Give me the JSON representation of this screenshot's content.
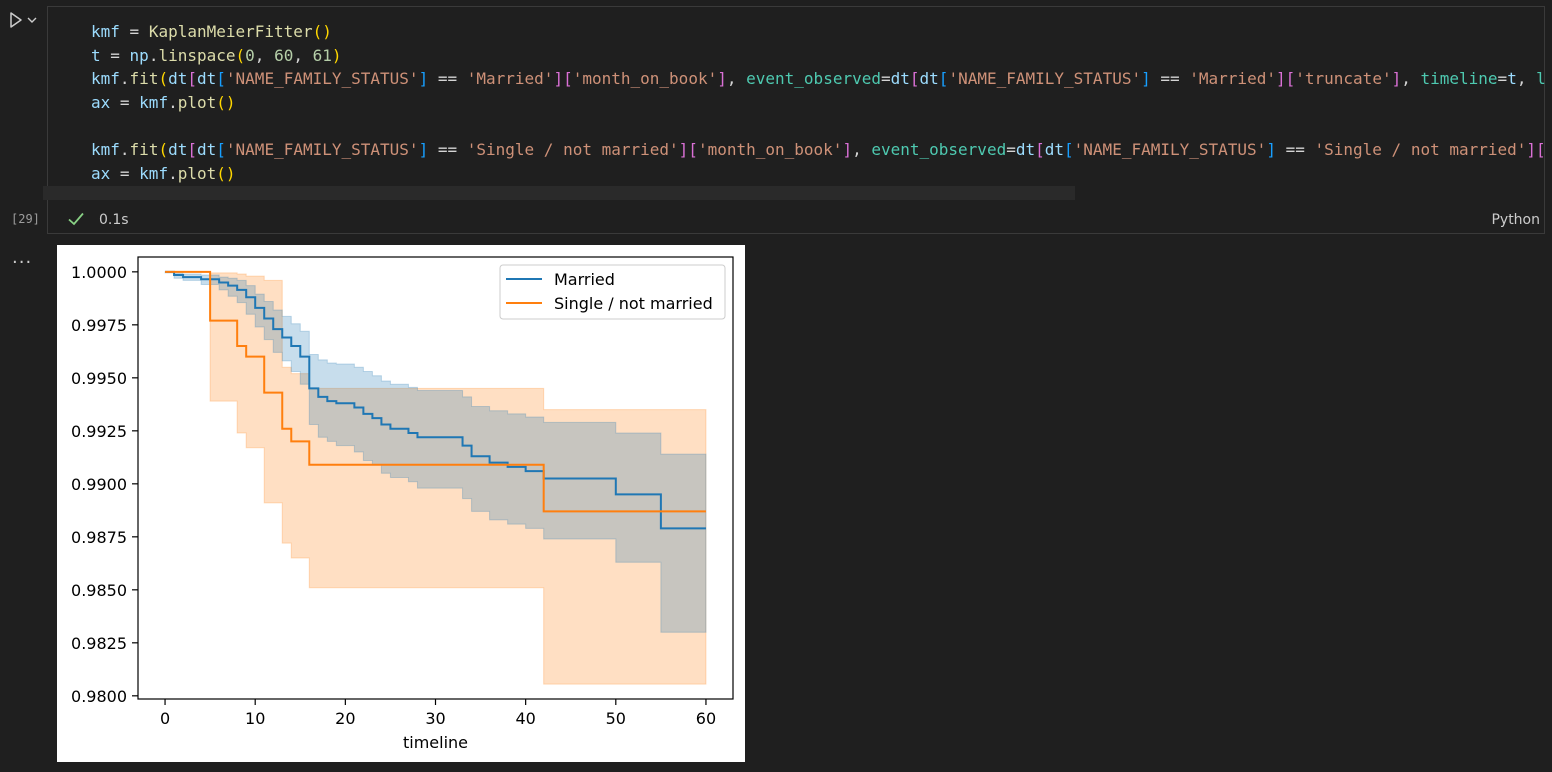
{
  "cell": {
    "code_lines": [
      [
        [
          "tk-var",
          "kmf"
        ],
        [
          "tk-op",
          " = "
        ],
        [
          "tk-kw",
          "KaplanMeierFitter"
        ],
        [
          "tk-br1",
          "()"
        ]
      ],
      [
        [
          "tk-var",
          "t"
        ],
        [
          "tk-op",
          " = "
        ],
        [
          "tk-var",
          "np"
        ],
        [
          "tk-op",
          "."
        ],
        [
          "tk-kw",
          "linspace"
        ],
        [
          "tk-br1",
          "("
        ],
        [
          "tk-num",
          "0"
        ],
        [
          "tk-op",
          ", "
        ],
        [
          "tk-num",
          "60"
        ],
        [
          "tk-op",
          ", "
        ],
        [
          "tk-num",
          "61"
        ],
        [
          "tk-br1",
          ")"
        ]
      ],
      [
        [
          "tk-var",
          "kmf"
        ],
        [
          "tk-op",
          "."
        ],
        [
          "tk-kw",
          "fit"
        ],
        [
          "tk-br1",
          "("
        ],
        [
          "tk-var",
          "dt"
        ],
        [
          "tk-br2",
          "["
        ],
        [
          "tk-var",
          "dt"
        ],
        [
          "tk-br3",
          "["
        ],
        [
          "tk-str",
          "'NAME_FAMILY_STATUS'"
        ],
        [
          "tk-br3",
          "]"
        ],
        [
          "tk-op",
          " == "
        ],
        [
          "tk-str",
          "'Married'"
        ],
        [
          "tk-br2",
          "]"
        ],
        [
          "tk-br2",
          "["
        ],
        [
          "tk-str",
          "'month_on_book'"
        ],
        [
          "tk-br2",
          "]"
        ],
        [
          "tk-op",
          ", "
        ],
        [
          "tk-kwarg",
          "event_observed"
        ],
        [
          "tk-op",
          "="
        ],
        [
          "tk-var",
          "dt"
        ],
        [
          "tk-br2",
          "["
        ],
        [
          "tk-var",
          "dt"
        ],
        [
          "tk-br3",
          "["
        ],
        [
          "tk-str",
          "'NAME_FAMILY_STATUS'"
        ],
        [
          "tk-br3",
          "]"
        ],
        [
          "tk-op",
          " == "
        ],
        [
          "tk-str",
          "'Married'"
        ],
        [
          "tk-br2",
          "]"
        ],
        [
          "tk-br2",
          "["
        ],
        [
          "tk-str",
          "'truncate'"
        ],
        [
          "tk-br2",
          "]"
        ],
        [
          "tk-op",
          ", "
        ],
        [
          "tk-kwarg",
          "timeline"
        ],
        [
          "tk-op",
          "="
        ],
        [
          "tk-var",
          "t"
        ],
        [
          "tk-op",
          ", "
        ],
        [
          "tk-kwarg",
          "l"
        ]
      ],
      [
        [
          "tk-var",
          "ax"
        ],
        [
          "tk-op",
          " = "
        ],
        [
          "tk-var",
          "kmf"
        ],
        [
          "tk-op",
          "."
        ],
        [
          "tk-kw",
          "plot"
        ],
        [
          "tk-br1",
          "()"
        ]
      ],
      [],
      [
        [
          "tk-var",
          "kmf"
        ],
        [
          "tk-op",
          "."
        ],
        [
          "tk-kw",
          "fit"
        ],
        [
          "tk-br1",
          "("
        ],
        [
          "tk-var",
          "dt"
        ],
        [
          "tk-br2",
          "["
        ],
        [
          "tk-var",
          "dt"
        ],
        [
          "tk-br3",
          "["
        ],
        [
          "tk-str",
          "'NAME_FAMILY_STATUS'"
        ],
        [
          "tk-br3",
          "]"
        ],
        [
          "tk-op",
          " == "
        ],
        [
          "tk-str",
          "'Single / not married'"
        ],
        [
          "tk-br2",
          "]"
        ],
        [
          "tk-br2",
          "["
        ],
        [
          "tk-str",
          "'month_on_book'"
        ],
        [
          "tk-br2",
          "]"
        ],
        [
          "tk-op",
          ", "
        ],
        [
          "tk-kwarg",
          "event_observed"
        ],
        [
          "tk-op",
          "="
        ],
        [
          "tk-var",
          "dt"
        ],
        [
          "tk-br2",
          "["
        ],
        [
          "tk-var",
          "dt"
        ],
        [
          "tk-br3",
          "["
        ],
        [
          "tk-str",
          "'NAME_FAMILY_STATUS'"
        ],
        [
          "tk-br3",
          "]"
        ],
        [
          "tk-op",
          " == "
        ],
        [
          "tk-str",
          "'Single / not married'"
        ],
        [
          "tk-br2",
          "]"
        ],
        [
          "tk-br2",
          "["
        ]
      ],
      [
        [
          "tk-var",
          "ax"
        ],
        [
          "tk-op",
          " = "
        ],
        [
          "tk-var",
          "kmf"
        ],
        [
          "tk-op",
          "."
        ],
        [
          "tk-kw",
          "plot"
        ],
        [
          "tk-br1",
          "()"
        ]
      ]
    ],
    "execution_count": "[29]",
    "execution_time": "0.1s",
    "language": "Python",
    "output_more": "..."
  },
  "chart_data": {
    "type": "line",
    "xlabel": "timeline",
    "ylabel": "",
    "xlim": [
      -3,
      63
    ],
    "ylim": [
      0.97985,
      1.0007
    ],
    "xticks": [
      0,
      10,
      20,
      30,
      40,
      50,
      60
    ],
    "yticks": [
      0.98,
      0.9825,
      0.985,
      0.9875,
      0.99,
      0.9925,
      0.995,
      0.9975,
      1.0
    ],
    "ytick_labels": [
      "0.9800",
      "0.9825",
      "0.9850",
      "0.9875",
      "0.9900",
      "0.9925",
      "0.9950",
      "0.9975",
      "1.0000"
    ],
    "legend_position": "upper right",
    "series": [
      {
        "name": "Married",
        "color": "#1f77b4",
        "band_color": "#1f77b4",
        "steps": [
          [
            0,
            1.0
          ],
          [
            1,
            0.99985
          ],
          [
            2,
            0.99975
          ],
          [
            4,
            0.99965
          ],
          [
            6,
            0.9995
          ],
          [
            7,
            0.99935
          ],
          [
            8,
            0.99915
          ],
          [
            9,
            0.9988
          ],
          [
            10,
            0.9983
          ],
          [
            11,
            0.9978
          ],
          [
            12,
            0.9973
          ],
          [
            13,
            0.9969
          ],
          [
            14,
            0.9965
          ],
          [
            15,
            0.996
          ],
          [
            16,
            0.9945
          ],
          [
            17,
            0.9941
          ],
          [
            18,
            0.9939
          ],
          [
            19,
            0.9938
          ],
          [
            21,
            0.9936
          ],
          [
            22,
            0.9933
          ],
          [
            23,
            0.9931
          ],
          [
            24,
            0.9928
          ],
          [
            25,
            0.9926
          ],
          [
            27,
            0.9924
          ],
          [
            28,
            0.9922
          ],
          [
            33,
            0.9918
          ],
          [
            34,
            0.9913
          ],
          [
            36,
            0.991
          ],
          [
            38,
            0.9908
          ],
          [
            40,
            0.9906
          ],
          [
            42,
            0.99025
          ],
          [
            50,
            0.9895
          ],
          [
            55,
            0.9879
          ],
          [
            60,
            0.9879
          ]
        ],
        "lower": [
          [
            0,
            0.99995
          ],
          [
            1,
            0.9997
          ],
          [
            2,
            0.9996
          ],
          [
            4,
            0.9994
          ],
          [
            6,
            0.99915
          ],
          [
            7,
            0.99885
          ],
          [
            8,
            0.99855
          ],
          [
            9,
            0.998
          ],
          [
            10,
            0.9974
          ],
          [
            11,
            0.9968
          ],
          [
            12,
            0.9962
          ],
          [
            13,
            0.9958
          ],
          [
            14,
            0.9953
          ],
          [
            15,
            0.9947
          ],
          [
            16,
            0.9928
          ],
          [
            17,
            0.9922
          ],
          [
            18,
            0.992
          ],
          [
            19,
            0.9918
          ],
          [
            21,
            0.9915
          ],
          [
            22,
            0.9911
          ],
          [
            23,
            0.9909
          ],
          [
            24,
            0.9905
          ],
          [
            25,
            0.9903
          ],
          [
            27,
            0.9901
          ],
          [
            28,
            0.9898
          ],
          [
            33,
            0.9893
          ],
          [
            34,
            0.9887
          ],
          [
            36,
            0.9883
          ],
          [
            38,
            0.9881
          ],
          [
            40,
            0.9879
          ],
          [
            42,
            0.9874
          ],
          [
            50,
            0.9863
          ],
          [
            55,
            0.983
          ],
          [
            60,
            0.983
          ]
        ],
        "upper": [
          [
            0,
            1.0
          ],
          [
            1,
            0.99995
          ],
          [
            2,
            0.9999
          ],
          [
            4,
            0.99985
          ],
          [
            6,
            0.99975
          ],
          [
            7,
            0.9997
          ],
          [
            8,
            0.9996
          ],
          [
            9,
            0.99935
          ],
          [
            10,
            0.99895
          ],
          [
            11,
            0.9986
          ],
          [
            12,
            0.9982
          ],
          [
            13,
            0.9979
          ],
          [
            14,
            0.99755
          ],
          [
            15,
            0.9972
          ],
          [
            16,
            0.9961
          ],
          [
            17,
            0.99585
          ],
          [
            18,
            0.9957
          ],
          [
            19,
            0.99565
          ],
          [
            21,
            0.9955
          ],
          [
            22,
            0.9953
          ],
          [
            23,
            0.9951
          ],
          [
            24,
            0.99485
          ],
          [
            25,
            0.9947
          ],
          [
            27,
            0.99455
          ],
          [
            28,
            0.9944
          ],
          [
            33,
            0.9941
          ],
          [
            34,
            0.99365
          ],
          [
            36,
            0.99345
          ],
          [
            38,
            0.9933
          ],
          [
            40,
            0.99315
          ],
          [
            42,
            0.9929
          ],
          [
            50,
            0.9924
          ],
          [
            55,
            0.9914
          ],
          [
            60,
            0.9914
          ]
        ]
      },
      {
        "name": "Single / not married",
        "color": "#ff7f0e",
        "band_color": "#ff7f0e",
        "steps": [
          [
            0,
            1.0
          ],
          [
            5,
            0.9977
          ],
          [
            8,
            0.9965
          ],
          [
            9,
            0.996
          ],
          [
            11,
            0.9943
          ],
          [
            13,
            0.9926
          ],
          [
            14,
            0.992
          ],
          [
            16,
            0.9909
          ],
          [
            42,
            0.9887
          ],
          [
            60,
            0.9887
          ]
        ],
        "lower": [
          [
            0,
            1.0
          ],
          [
            5,
            0.9939
          ],
          [
            8,
            0.9924
          ],
          [
            9,
            0.9917
          ],
          [
            11,
            0.9891
          ],
          [
            13,
            0.9872
          ],
          [
            14,
            0.9865
          ],
          [
            16,
            0.9851
          ],
          [
            42,
            0.98055
          ],
          [
            60,
            0.98055
          ]
        ],
        "upper": [
          [
            0,
            1.0
          ],
          [
            5,
            0.99995
          ],
          [
            8,
            0.9999
          ],
          [
            9,
            0.9998
          ],
          [
            11,
            0.9996
          ],
          [
            13,
            0.9955
          ],
          [
            14,
            0.9952
          ],
          [
            16,
            0.9945
          ],
          [
            42,
            0.9935
          ],
          [
            60,
            0.9935
          ]
        ]
      }
    ]
  }
}
